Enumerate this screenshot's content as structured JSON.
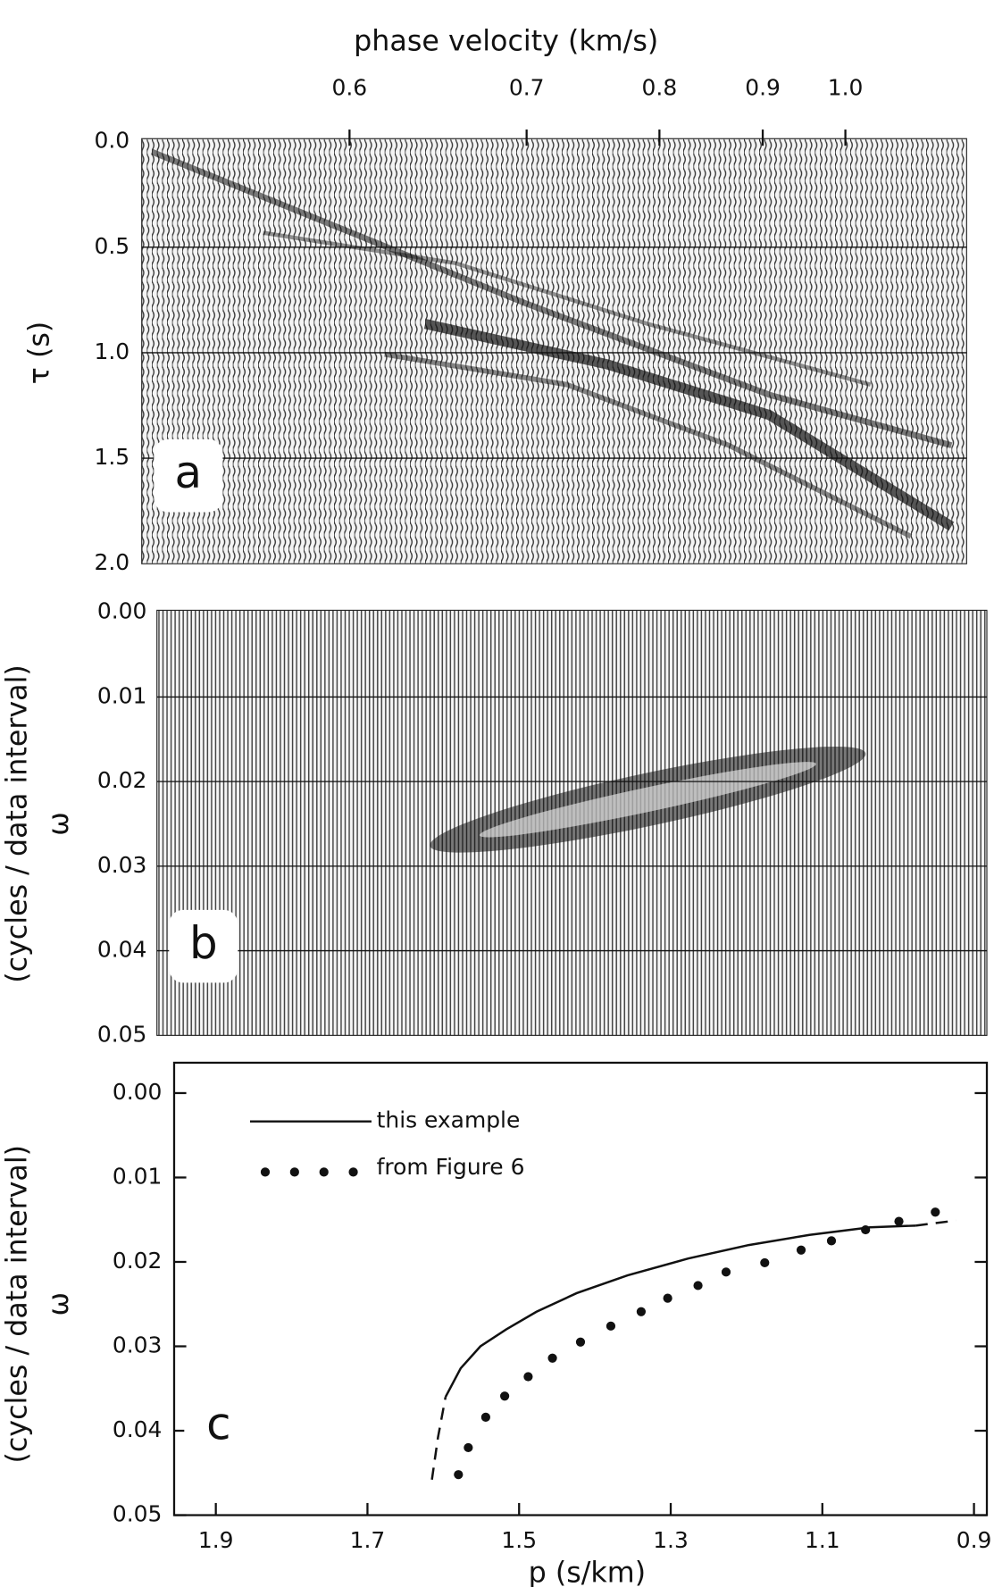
{
  "chart_data": [
    {
      "type": "image",
      "panel_label": "a",
      "ylabel": "τ (s)",
      "top_axis": {
        "label": "phase velocity (km/s)",
        "ticks": [
          0.6,
          0.7,
          0.8,
          0.9,
          {
            "value": 1,
            "label": "1.0"
          }
        ]
      },
      "xlim": [
        1.946,
        0.837
      ],
      "ylim": [
        0,
        2
      ],
      "yticks": [
        {
          "value": 0,
          "label": "0.0"
        },
        0.5,
        {
          "value": 1,
          "label": "1.0"
        },
        1.5,
        {
          "value": 2,
          "label": "2.0"
        }
      ],
      "grid": true
    },
    {
      "type": "image",
      "panel_label": "b",
      "ylabel": "ω",
      "ylabel2": "(cycles / data interval)",
      "ylim": [
        0,
        0.05
      ],
      "yticks": [
        {
          "value": 0,
          "label": "0.00"
        },
        0.01,
        0.02,
        0.03,
        0.04,
        0.05
      ],
      "grid": true
    },
    {
      "type": "line",
      "panel_label": "c",
      "ylabel": "ω",
      "ylabel2": "(cycles / data interval)",
      "xlabel": "p (s/km)",
      "xlim": [
        1.955,
        0.883
      ],
      "ylim": [
        0,
        0.05
      ],
      "xticks": [
        1.9,
        1.7,
        1.5,
        1.3,
        1.1,
        0.9
      ],
      "yticks": [
        {
          "value": 0,
          "label": "0.00"
        },
        0.01,
        0.02,
        0.03,
        0.04,
        0.05
      ],
      "legend": "upper left",
      "series": [
        {
          "name": "this example",
          "style": "solid",
          "color": "#111111",
          "x": [
            1.597,
            1.577,
            1.551,
            1.517,
            1.477,
            1.424,
            1.357,
            1.277,
            1.197,
            1.117,
            1.037,
            0.977
          ],
          "values": [
            0.036,
            0.0326,
            0.03,
            0.028,
            0.0259,
            0.0237,
            0.0216,
            0.0196,
            0.018,
            0.0168,
            0.0159,
            0.0157
          ]
        },
        {
          "style": "dashed",
          "color": "#111111",
          "x": [
            1.615,
            1.607,
            1.597
          ],
          "values": [
            0.0458,
            0.0408,
            0.036
          ]
        },
        {
          "style": "dashed",
          "color": "#111111",
          "x": [
            0.977,
            0.924
          ],
          "values": [
            0.0157,
            0.0151
          ]
        },
        {
          "name": "from Figure 6",
          "style": "dots",
          "color": "#111111",
          "x": [
            1.58,
            1.567,
            1.544,
            1.519,
            1.488,
            1.456,
            1.419,
            1.379,
            1.339,
            1.304,
            1.264,
            1.227,
            1.176,
            1.128,
            1.088,
            1.043,
            0.999,
            0.951
          ],
          "values": [
            0.0452,
            0.042,
            0.0384,
            0.0359,
            0.0336,
            0.0314,
            0.0295,
            0.0276,
            0.0259,
            0.0243,
            0.0228,
            0.0212,
            0.0201,
            0.0186,
            0.0175,
            0.0162,
            0.0152,
            0.0141
          ]
        }
      ]
    }
  ]
}
